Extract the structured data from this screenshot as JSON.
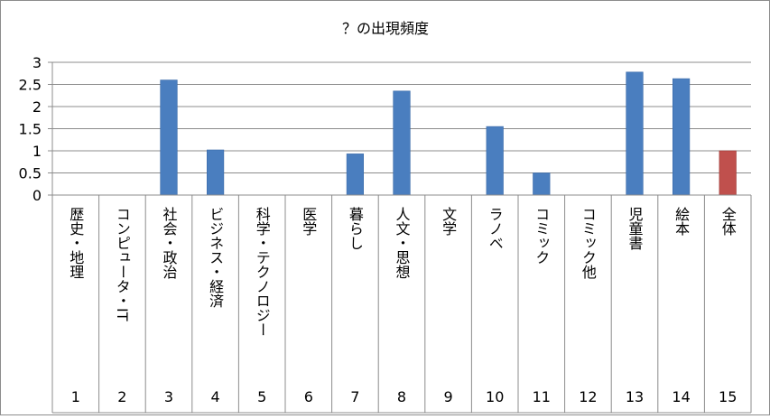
{
  "chart_data": {
    "type": "bar",
    "title": "？の出現頻度",
    "categories": [
      "歴史・地理",
      "コンピュータ・IT",
      "社会・政治",
      "ビジネス・経済",
      "科学・テクノロジー",
      "医学",
      "暮らし",
      "人文・思想",
      "文学",
      "ラノベ",
      "コミック",
      "コミック他",
      "児童書",
      "絵本",
      "全体"
    ],
    "category_numbers": [
      "1",
      "2",
      "3",
      "4",
      "5",
      "6",
      "7",
      "8",
      "9",
      "10",
      "11",
      "12",
      "13",
      "14",
      "15"
    ],
    "values": [
      0,
      0,
      2.6,
      1.02,
      0,
      0,
      0.93,
      2.35,
      0,
      1.55,
      0.5,
      0,
      2.78,
      2.63,
      1.0
    ],
    "ylim": [
      0,
      3
    ],
    "yticks": [
      "0",
      "0.5",
      "1",
      "1.5",
      "2",
      "2.5",
      "3"
    ],
    "xlabel": "",
    "ylabel": "",
    "grid": true,
    "legend": "none",
    "colors": {
      "bar": "#4a7ebf",
      "highlight": "#c0504d",
      "highlight_category": "全体",
      "grid": "#8c8c8c",
      "axis": "#8c8c8c",
      "text": "#000000"
    }
  }
}
